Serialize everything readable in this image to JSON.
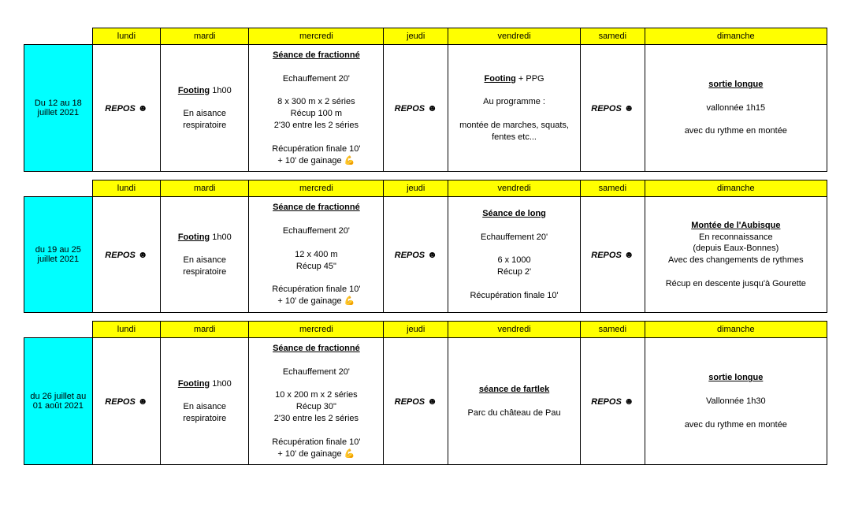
{
  "days": [
    "lundi",
    "mardi",
    "mercredi",
    "jeudi",
    "vendredi",
    "samedi",
    "dimanche"
  ],
  "repos": {
    "label": "REPOS",
    "icon": "☻"
  },
  "flex": "💪",
  "weeks": [
    {
      "date_lines": [
        "Du 12 au 18",
        "juillet 2021"
      ],
      "mardi": {
        "title": "Footing",
        "tail": " 1h00",
        "lines": [
          "",
          "En aisance respiratoire"
        ]
      },
      "mercredi": {
        "title": "Séance de fractionné",
        "lines": [
          "",
          "Echauffement 20'",
          "",
          "8 x 300 m x 2 séries",
          "Récup 100 m",
          "2'30 entre les 2 séries",
          "",
          "Récupération finale 10'",
          "+ 10' de gainage "
        ],
        "flex": true
      },
      "vendredi": {
        "title": "Footing",
        "tail": " + PPG",
        "lines": [
          "",
          "Au programme :",
          "",
          "montée de marches, squats, fentes etc..."
        ]
      },
      "dimanche": {
        "title": "sortie longue",
        "lines": [
          "",
          "vallonnée 1h15",
          "",
          "avec du rythme en montée"
        ]
      }
    },
    {
      "date_lines": [
        "du 19 au 25",
        "juillet 2021"
      ],
      "mardi": {
        "title": "Footing",
        "tail": " 1h00",
        "lines": [
          "",
          "En aisance respiratoire"
        ]
      },
      "mercredi": {
        "title": "Séance de fractionné",
        "lines": [
          "",
          "Echauffement 20'",
          "",
          "12 x 400 m",
          "Récup 45\"",
          "",
          "Récupération finale 10'",
          "+ 10' de gainage "
        ],
        "flex": true
      },
      "vendredi": {
        "title": "Séance de long",
        "title_tail": "",
        "custom_title": true,
        "lines": [
          "",
          "Echauffement 20'",
          "",
          "6 x 1000",
          "Récup 2'",
          "",
          "Récupération finale 10'"
        ]
      },
      "dimanche": {
        "title": "Montée de l'Aubisque",
        "lines": [
          "En reconnaissance",
          "(depuis Eaux-Bonnes)",
          "Avec des changements de rythmes",
          "",
          "Récup en descente jusqu'à Gourette"
        ]
      }
    },
    {
      "date_lines": [
        "du 26 juillet au",
        "01 août 2021"
      ],
      "mardi": {
        "title": "Footing",
        "tail": " 1h00",
        "lines": [
          "",
          "En aisance respiratoire"
        ]
      },
      "mercredi": {
        "title": "Séance de fractionné",
        "lines": [
          "",
          "Echauffement 20'",
          "",
          "10 x 200 m x 2 séries",
          "Récup 30\"",
          "2'30 entre les 2 séries",
          "",
          "Récupération finale 10'",
          "+ 10' de gainage "
        ],
        "flex": true
      },
      "vendredi": {
        "title": "séance de fartlek",
        "title_tail": "",
        "custom_title": true,
        "lines": [
          "",
          "Parc du château de Pau"
        ]
      },
      "dimanche": {
        "title": "sortie longue",
        "lines": [
          "",
          "Vallonnée 1h30",
          "",
          "avec du rythme en montée"
        ]
      }
    }
  ]
}
